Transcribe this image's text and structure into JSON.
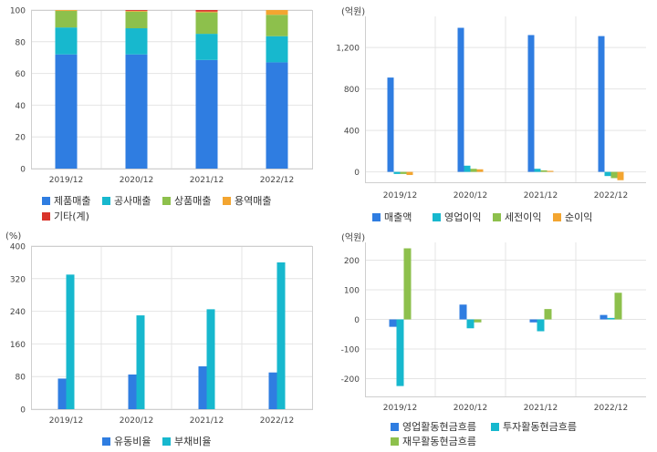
{
  "colors": {
    "blue": "#2f7de1",
    "cyan": "#17b8ce",
    "green": "#8dc04c",
    "orange": "#f3a530",
    "red": "#d9342b",
    "grid": "#e4e4e4",
    "frame": "#cfcfcf"
  },
  "chart_data": [
    {
      "id": "sales_mix",
      "type": "bar",
      "stacked": true,
      "unit_label": "",
      "categories": [
        "2019/12",
        "2020/12",
        "2021/12",
        "2022/12"
      ],
      "ylim": [
        0,
        100
      ],
      "yticks": [
        0,
        20,
        40,
        60,
        80,
        100
      ],
      "grid": true,
      "legend_position": "bottom",
      "series": [
        {
          "name": "제품매출",
          "color": "#2f7de1",
          "values": [
            72,
            72,
            68.5,
            67
          ]
        },
        {
          "name": "공사매출",
          "color": "#17b8ce",
          "values": [
            17,
            16.5,
            16.5,
            16.5
          ]
        },
        {
          "name": "상품매출",
          "color": "#8dc04c",
          "values": [
            10.5,
            10.5,
            13.5,
            13.5
          ]
        },
        {
          "name": "용역매출",
          "color": "#f3a530",
          "values": [
            0.5,
            0.5,
            0.5,
            3
          ]
        },
        {
          "name": "기타(계)",
          "color": "#d9342b",
          "values": [
            0,
            0.5,
            1,
            0
          ]
        }
      ]
    },
    {
      "id": "income",
      "type": "bar",
      "unit_label": "(억원)",
      "categories": [
        "2019/12",
        "2020/12",
        "2021/12",
        "2022/12"
      ],
      "ylim": [
        -100,
        1500
      ],
      "yticks": [
        0,
        400,
        800,
        1200
      ],
      "ytick_labels": [
        "0",
        "400",
        "800",
        "1,200"
      ],
      "grid": true,
      "legend_position": "bottom",
      "series": [
        {
          "name": "매출액",
          "color": "#2f7de1",
          "values": [
            910,
            1390,
            1320,
            1310
          ]
        },
        {
          "name": "영업이익",
          "color": "#17b8ce",
          "values": [
            -20,
            60,
            30,
            -40
          ]
        },
        {
          "name": "세전이익",
          "color": "#8dc04c",
          "values": [
            -20,
            30,
            15,
            -60
          ]
        },
        {
          "name": "순이익",
          "color": "#f3a530",
          "values": [
            -30,
            25,
            10,
            -80
          ]
        }
      ]
    },
    {
      "id": "ratios",
      "type": "bar",
      "unit_label": "(%)",
      "categories": [
        "2019/12",
        "2020/12",
        "2021/12",
        "2022/12"
      ],
      "ylim": [
        0,
        400
      ],
      "yticks": [
        0,
        80,
        160,
        240,
        320,
        400
      ],
      "grid": true,
      "legend_position": "bottom",
      "series": [
        {
          "name": "유동비율",
          "color": "#2f7de1",
          "values": [
            75,
            85,
            105,
            90
          ]
        },
        {
          "name": "부채비율",
          "color": "#17b8ce",
          "values": [
            330,
            230,
            245,
            360
          ]
        }
      ]
    },
    {
      "id": "cashflow",
      "type": "bar",
      "unit_label": "(억원)",
      "categories": [
        "2019/12",
        "2020/12",
        "2021/12",
        "2022/12"
      ],
      "ylim": [
        -260,
        260
      ],
      "yticks": [
        -200,
        -100,
        0,
        100,
        200
      ],
      "grid": true,
      "legend_position": "bottom",
      "series": [
        {
          "name": "영업활동현금흐름",
          "color": "#2f7de1",
          "values": [
            -25,
            50,
            -10,
            15
          ]
        },
        {
          "name": "투자활동현금흐름",
          "color": "#17b8ce",
          "values": [
            -225,
            -30,
            -40,
            5
          ]
        },
        {
          "name": "재무활동현금흐름",
          "color": "#8dc04c",
          "values": [
            240,
            -10,
            35,
            90
          ]
        }
      ]
    }
  ]
}
